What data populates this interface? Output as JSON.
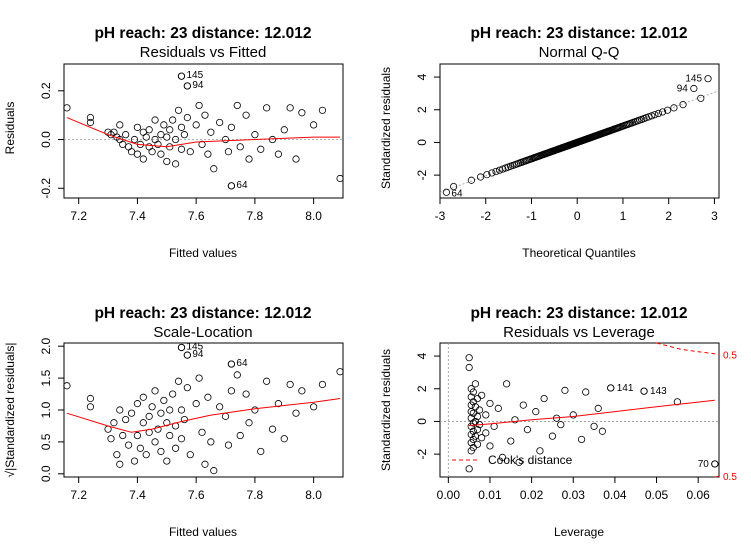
{
  "colors": {
    "smooth": "#ff0000",
    "reference": "#999999",
    "points": "#000000",
    "cook": "#ff0000"
  },
  "chart_data": [
    {
      "type": "scatter",
      "title": "pH  reach: 23  distance: 12.012",
      "subtitle": "Residuals vs Fitted",
      "xlabel": "Fitted values",
      "ylabel": "Residuals",
      "xlim": [
        7.15,
        8.1
      ],
      "ylim": [
        -0.24,
        0.31
      ],
      "xticks": [
        7.2,
        7.4,
        7.6,
        7.8,
        8.0
      ],
      "xtick_labels": [
        "7.2",
        "7.4",
        "7.6",
        "7.8",
        "8.0"
      ],
      "yticks": [
        -0.2,
        0.0,
        0.2
      ],
      "ytick_labels": [
        "-0.2",
        "0.0",
        "0.2"
      ],
      "reference_y": 0,
      "points": [
        [
          7.16,
          0.13
        ],
        [
          7.24,
          0.09
        ],
        [
          7.24,
          0.07
        ],
        [
          7.3,
          0.03
        ],
        [
          7.31,
          0.02
        ],
        [
          7.32,
          0.03
        ],
        [
          7.33,
          0.01
        ],
        [
          7.34,
          0.0
        ],
        [
          7.35,
          -0.02
        ],
        [
          7.34,
          0.06
        ],
        [
          7.36,
          0.02
        ],
        [
          7.37,
          -0.03
        ],
        [
          7.38,
          -0.05
        ],
        [
          7.39,
          0.0
        ],
        [
          7.4,
          -0.06
        ],
        [
          7.4,
          0.05
        ],
        [
          7.41,
          -0.02
        ],
        [
          7.42,
          0.03
        ],
        [
          7.42,
          -0.08
        ],
        [
          7.43,
          0.01
        ],
        [
          7.44,
          0.04
        ],
        [
          7.44,
          -0.03
        ],
        [
          7.45,
          -0.05
        ],
        [
          7.46,
          0.0
        ],
        [
          7.46,
          0.08
        ],
        [
          7.47,
          -0.02
        ],
        [
          7.48,
          0.02
        ],
        [
          7.48,
          -0.06
        ],
        [
          7.49,
          0.06
        ],
        [
          7.5,
          -0.09
        ],
        [
          7.5,
          0.01
        ],
        [
          7.51,
          0.04
        ],
        [
          7.51,
          -0.03
        ],
        [
          7.52,
          0.08
        ],
        [
          7.53,
          0.0
        ],
        [
          7.53,
          -0.1
        ],
        [
          7.54,
          0.12
        ],
        [
          7.55,
          0.05
        ],
        [
          7.55,
          -0.04
        ],
        [
          7.56,
          0.02
        ],
        [
          7.57,
          0.09
        ],
        [
          7.58,
          -0.05
        ],
        [
          7.6,
          0.06
        ],
        [
          7.61,
          0.14
        ],
        [
          7.62,
          -0.02
        ],
        [
          7.63,
          0.1
        ],
        [
          7.64,
          -0.06
        ],
        [
          7.65,
          0.03
        ],
        [
          7.66,
          -0.12
        ],
        [
          7.68,
          0.07
        ],
        [
          7.7,
          0.0
        ],
        [
          7.71,
          -0.05
        ],
        [
          7.72,
          0.05
        ],
        [
          7.74,
          0.14
        ],
        [
          7.75,
          -0.03
        ],
        [
          7.77,
          0.1
        ],
        [
          7.78,
          -0.08
        ],
        [
          7.8,
          0.02
        ],
        [
          7.82,
          -0.04
        ],
        [
          7.84,
          0.13
        ],
        [
          7.86,
          0.0
        ],
        [
          7.88,
          -0.06
        ],
        [
          7.9,
          0.04
        ],
        [
          7.92,
          0.13
        ],
        [
          7.94,
          -0.08
        ],
        [
          7.96,
          0.11
        ],
        [
          8.0,
          0.06
        ],
        [
          8.03,
          0.12
        ],
        [
          8.09,
          -0.16
        ],
        [
          7.55,
          0.26
        ],
        [
          7.57,
          0.22
        ],
        [
          7.72,
          -0.19
        ]
      ],
      "labeled_points": [
        {
          "x": 7.55,
          "y": 0.26,
          "label": "145"
        },
        {
          "x": 7.57,
          "y": 0.22,
          "label": "94"
        },
        {
          "x": 7.72,
          "y": -0.19,
          "label": "64"
        }
      ],
      "smooth": [
        [
          7.16,
          0.09
        ],
        [
          7.3,
          0.02
        ],
        [
          7.4,
          -0.02
        ],
        [
          7.5,
          -0.03
        ],
        [
          7.6,
          -0.01
        ],
        [
          7.8,
          0.0
        ],
        [
          8.0,
          0.01
        ],
        [
          8.09,
          0.01
        ]
      ]
    },
    {
      "type": "scatter",
      "title": "pH  reach: 23  distance: 12.012",
      "subtitle": "Normal Q-Q",
      "xlabel": "Theoretical Quantiles",
      "ylabel": "Standardized residuals",
      "xlim": [
        -3.0,
        3.1
      ],
      "ylim": [
        -3.4,
        4.8
      ],
      "xticks": [
        -3,
        -2,
        -1,
        0,
        1,
        2,
        3
      ],
      "xtick_labels": [
        "-3",
        "-2",
        "-1",
        "0",
        "1",
        "2",
        "3"
      ],
      "yticks": [
        -2,
        0,
        2,
        4
      ],
      "ytick_labels": [
        "-2",
        "0",
        "2",
        "4"
      ],
      "reference_line": {
        "slope": 1.02,
        "intercept": 0.0
      },
      "qq": {
        "n": 145,
        "slope": 1.0
      },
      "labeled_points": [
        {
          "x": 2.86,
          "y": 3.9,
          "label": "145"
        },
        {
          "x": 2.55,
          "y": 3.3,
          "label": "94"
        },
        {
          "x": -2.86,
          "y": -3.05,
          "label": "64"
        }
      ]
    },
    {
      "type": "scatter",
      "title": "pH  reach: 23  distance: 12.012",
      "subtitle": "Scale-Location",
      "xlabel": "Fitted values",
      "ylabel": "√|Standardized residuals|",
      "xlim": [
        7.15,
        8.1
      ],
      "ylim": [
        -0.05,
        2.05
      ],
      "xticks": [
        7.2,
        7.4,
        7.6,
        7.8,
        8.0
      ],
      "xtick_labels": [
        "7.2",
        "7.4",
        "7.6",
        "7.8",
        "8.0"
      ],
      "yticks": [
        0.0,
        0.5,
        1.0,
        1.5,
        2.0
      ],
      "ytick_labels": [
        "0.0",
        "0.5",
        "1.0",
        "1.5",
        "2.0"
      ],
      "points": [
        [
          7.16,
          1.38
        ],
        [
          7.24,
          1.18
        ],
        [
          7.24,
          1.05
        ],
        [
          7.3,
          0.7
        ],
        [
          7.31,
          0.55
        ],
        [
          7.32,
          0.8
        ],
        [
          7.33,
          0.3
        ],
        [
          7.34,
          0.15
        ],
        [
          7.35,
          0.6
        ],
        [
          7.34,
          1.0
        ],
        [
          7.36,
          0.85
        ],
        [
          7.37,
          0.45
        ],
        [
          7.38,
          0.95
        ],
        [
          7.39,
          0.2
        ],
        [
          7.4,
          1.1
        ],
        [
          7.4,
          0.6
        ],
        [
          7.41,
          0.4
        ],
        [
          7.42,
          0.8
        ],
        [
          7.42,
          1.2
        ],
        [
          7.43,
          0.3
        ],
        [
          7.44,
          0.9
        ],
        [
          7.44,
          0.65
        ],
        [
          7.45,
          1.05
        ],
        [
          7.46,
          0.5
        ],
        [
          7.46,
          1.3
        ],
        [
          7.47,
          0.7
        ],
        [
          7.48,
          0.95
        ],
        [
          7.48,
          0.35
        ],
        [
          7.49,
          1.15
        ],
        [
          7.5,
          0.8
        ],
        [
          7.5,
          0.2
        ],
        [
          7.51,
          1.0
        ],
        [
          7.51,
          0.6
        ],
        [
          7.52,
          1.25
        ],
        [
          7.53,
          0.75
        ],
        [
          7.53,
          0.4
        ],
        [
          7.54,
          1.45
        ],
        [
          7.55,
          1.0
        ],
        [
          7.55,
          0.55
        ],
        [
          7.56,
          0.85
        ],
        [
          7.57,
          1.35
        ],
        [
          7.58,
          0.3
        ],
        [
          7.6,
          1.1
        ],
        [
          7.61,
          1.5
        ],
        [
          7.62,
          0.65
        ],
        [
          7.63,
          0.15
        ],
        [
          7.64,
          1.2
        ],
        [
          7.65,
          0.5
        ],
        [
          7.66,
          0.05
        ],
        [
          7.68,
          1.05
        ],
        [
          7.7,
          0.9
        ],
        [
          7.71,
          0.45
        ],
        [
          7.72,
          1.3
        ],
        [
          7.74,
          1.55
        ],
        [
          7.75,
          0.6
        ],
        [
          7.77,
          1.25
        ],
        [
          7.78,
          0.8
        ],
        [
          7.8,
          1.0
        ],
        [
          7.82,
          0.35
        ],
        [
          7.84,
          1.45
        ],
        [
          7.86,
          0.7
        ],
        [
          7.88,
          1.1
        ],
        [
          7.9,
          0.55
        ],
        [
          7.92,
          1.4
        ],
        [
          7.94,
          0.95
        ],
        [
          7.96,
          1.3
        ],
        [
          8.0,
          1.05
        ],
        [
          8.03,
          1.4
        ],
        [
          8.09,
          1.6
        ],
        [
          7.55,
          1.98
        ],
        [
          7.57,
          1.86
        ],
        [
          7.72,
          1.72
        ]
      ],
      "labeled_points": [
        {
          "x": 7.55,
          "y": 1.98,
          "label": "145"
        },
        {
          "x": 7.57,
          "y": 1.86,
          "label": "94"
        },
        {
          "x": 7.72,
          "y": 1.72,
          "label": "64"
        }
      ],
      "smooth": [
        [
          7.16,
          0.95
        ],
        [
          7.3,
          0.75
        ],
        [
          7.38,
          0.65
        ],
        [
          7.45,
          0.7
        ],
        [
          7.55,
          0.82
        ],
        [
          7.65,
          0.92
        ],
        [
          7.8,
          1.02
        ],
        [
          8.0,
          1.12
        ],
        [
          8.09,
          1.18
        ]
      ]
    },
    {
      "type": "scatter",
      "title": "pH  reach: 23  distance: 12.012",
      "subtitle": "Residuals vs Leverage",
      "xlabel": "Leverage",
      "ylabel": "Standardized residuals",
      "xlim": [
        -0.002,
        0.065
      ],
      "ylim": [
        -3.4,
        4.8
      ],
      "xticks": [
        0.0,
        0.01,
        0.02,
        0.03,
        0.04,
        0.05,
        0.06
      ],
      "xtick_labels": [
        "0.00",
        "0.01",
        "0.02",
        "0.03",
        "0.04",
        "0.05",
        "0.06"
      ],
      "yticks": [
        -2,
        0,
        2,
        4
      ],
      "ytick_labels": [
        "-2",
        "0",
        "2",
        "4"
      ],
      "reference_y": 0,
      "reference_x": 0,
      "points": [
        [
          0.005,
          3.9
        ],
        [
          0.005,
          3.3
        ],
        [
          0.005,
          -2.9
        ],
        [
          0.0055,
          2.0
        ],
        [
          0.0055,
          1.5
        ],
        [
          0.0055,
          1.0
        ],
        [
          0.0055,
          0.6
        ],
        [
          0.0055,
          0.2
        ],
        [
          0.0055,
          -0.3
        ],
        [
          0.0055,
          -0.8
        ],
        [
          0.0055,
          -1.3
        ],
        [
          0.0055,
          -1.8
        ],
        [
          0.006,
          1.8
        ],
        [
          0.006,
          1.2
        ],
        [
          0.006,
          0.5
        ],
        [
          0.006,
          -0.1
        ],
        [
          0.006,
          -0.6
        ],
        [
          0.006,
          -1.1
        ],
        [
          0.006,
          -1.6
        ],
        [
          0.0065,
          2.3
        ],
        [
          0.0065,
          0.9
        ],
        [
          0.0065,
          0.0
        ],
        [
          0.0065,
          -0.9
        ],
        [
          0.007,
          1.4
        ],
        [
          0.007,
          0.3
        ],
        [
          0.007,
          -0.5
        ],
        [
          0.007,
          -1.4
        ],
        [
          0.0075,
          0.7
        ],
        [
          0.0075,
          -0.2
        ],
        [
          0.008,
          1.6
        ],
        [
          0.008,
          -1.0
        ],
        [
          0.009,
          0.4
        ],
        [
          0.009,
          -0.7
        ],
        [
          0.01,
          1.1
        ],
        [
          0.01,
          -1.5
        ],
        [
          0.011,
          -0.3
        ],
        [
          0.012,
          0.8
        ],
        [
          0.013,
          -2.2
        ],
        [
          0.014,
          2.3
        ],
        [
          0.015,
          -1.2
        ],
        [
          0.016,
          0.1
        ],
        [
          0.017,
          -2.5
        ],
        [
          0.018,
          1.0
        ],
        [
          0.019,
          -0.5
        ],
        [
          0.021,
          0.6
        ],
        [
          0.022,
          -1.8
        ],
        [
          0.023,
          1.4
        ],
        [
          0.025,
          -0.9
        ],
        [
          0.026,
          0.2
        ],
        [
          0.027,
          -0.2
        ],
        [
          0.028,
          1.9
        ],
        [
          0.03,
          0.4
        ],
        [
          0.032,
          -1.1
        ],
        [
          0.033,
          1.8
        ],
        [
          0.035,
          -0.3
        ],
        [
          0.036,
          0.8
        ],
        [
          0.037,
          -0.6
        ],
        [
          0.055,
          1.2
        ],
        [
          0.039,
          2.05
        ],
        [
          0.047,
          1.85
        ],
        [
          0.064,
          -2.6
        ]
      ],
      "labeled_points": [
        {
          "x": 0.039,
          "y": 2.05,
          "label": "141"
        },
        {
          "x": 0.047,
          "y": 1.85,
          "label": "143"
        },
        {
          "x": 0.064,
          "y": -2.6,
          "label": "70"
        }
      ],
      "smooth": [
        [
          0.005,
          -0.25
        ],
        [
          0.01,
          -0.15
        ],
        [
          0.02,
          0.1
        ],
        [
          0.03,
          0.3
        ],
        [
          0.04,
          0.6
        ],
        [
          0.05,
          0.9
        ],
        [
          0.064,
          1.3
        ]
      ],
      "cook_upper": [
        [
          0.05,
          4.8
        ],
        [
          0.056,
          4.4
        ],
        [
          0.065,
          4.1
        ]
      ],
      "cook_lower": [
        [
          0.064,
          -3.4
        ],
        [
          0.065,
          -3.35
        ]
      ],
      "cook_label_upper": "0.5",
      "cook_label_lower": "0.5",
      "legend_label": "Cook's distance",
      "legend_position": "bottom-left"
    }
  ]
}
